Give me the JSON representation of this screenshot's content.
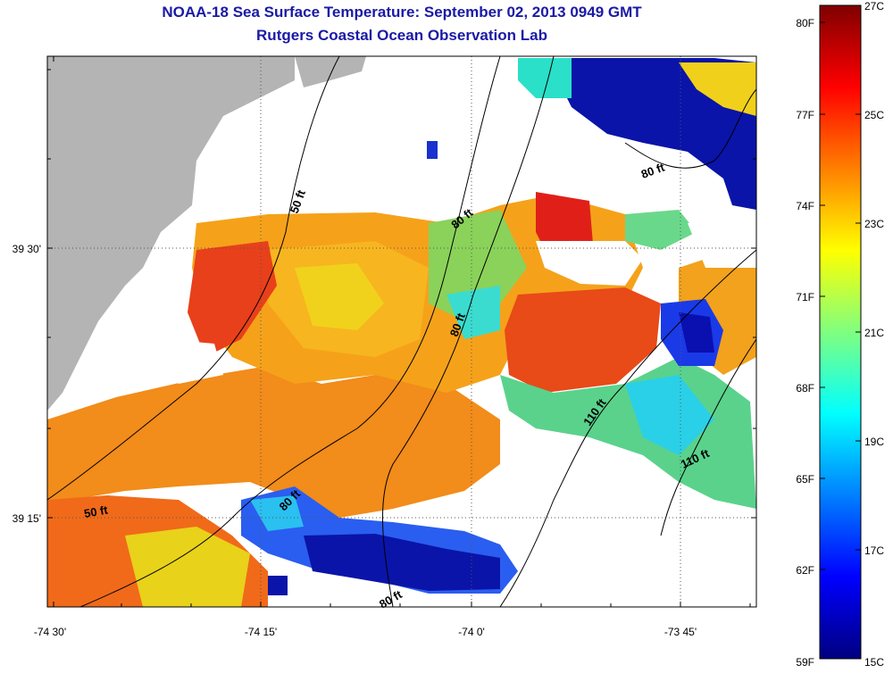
{
  "title": "NOAA-18 Sea Surface Temperature:  September 02, 2013 0949 GMT",
  "subtitle": "Rutgers Coastal Ocean Observation Lab",
  "axes": {
    "x_ticks": [
      "-74 30'",
      "-74 15'",
      "-74 0'",
      "-73 45'"
    ],
    "y_ticks": [
      "39 30'",
      "39 15'"
    ]
  },
  "contours": {
    "labels": [
      "50 ft",
      "50 ft",
      "80 ft",
      "80 ft",
      "80 ft",
      "80 ft",
      "80 ft",
      "110 ft",
      "110 ft"
    ]
  },
  "colorbar": {
    "f_labels": [
      "80F",
      "77F",
      "74F",
      "71F",
      "68F",
      "65F",
      "62F",
      "59F"
    ],
    "c_labels": [
      "27C",
      "25C",
      "23C",
      "21C",
      "19C",
      "17C",
      "15C"
    ],
    "min_c": 15,
    "max_c": 27
  },
  "colors": {
    "title": "#1a1aa6",
    "land": "#b4b4b4",
    "nodata": "#ffffff"
  }
}
